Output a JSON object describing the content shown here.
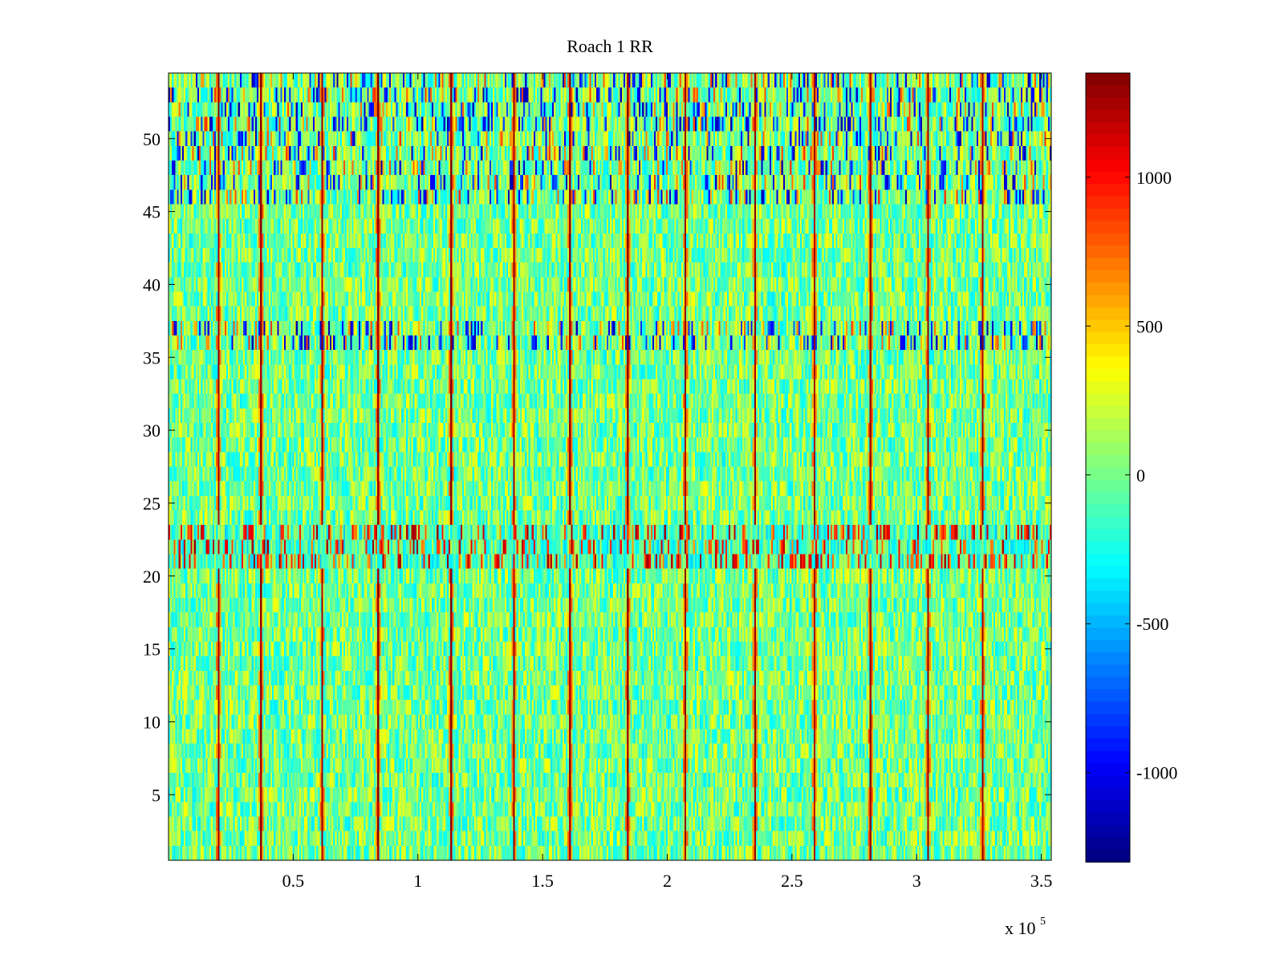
{
  "chart_data": {
    "type": "heatmap",
    "title": "Roach 1 RR",
    "xlabel": "",
    "ylabel": "",
    "x_multiplier_label": {
      "base": "x 10",
      "exponent": "5"
    },
    "xlim": [
      0,
      3.54
    ],
    "ylim": [
      0.5,
      54.5
    ],
    "x_ticks": [
      0.5,
      1,
      1.5,
      2,
      2.5,
      3,
      3.5
    ],
    "x_tick_labels": [
      "0.5",
      "1",
      "1.5",
      "2",
      "2.5",
      "3",
      "3.5"
    ],
    "y_ticks": [
      5,
      10,
      15,
      20,
      25,
      30,
      35,
      40,
      45,
      50
    ],
    "y_tick_labels": [
      "5",
      "10",
      "15",
      "20",
      "25",
      "30",
      "35",
      "40",
      "45",
      "50"
    ],
    "rows": 54,
    "columns": 520,
    "colormap": "jet",
    "clim": [
      -1300,
      1350
    ],
    "colorbar_ticks": [
      -1000,
      -500,
      0,
      500,
      1000
    ],
    "colorbar_tick_labels": [
      "-1000",
      "-500",
      "0",
      "500",
      "1000"
    ],
    "peak_lines_x": [
      0.2,
      0.37,
      0.61,
      0.84,
      1.13,
      1.38,
      1.61,
      1.84,
      2.07,
      2.35,
      2.59,
      2.81,
      3.04,
      3.26
    ],
    "peak_value": 1200,
    "background_range": [
      -400,
      400
    ],
    "high_variance_rows": [
      [
        21,
        23
      ],
      [
        36,
        37
      ],
      [
        46,
        54
      ]
    ],
    "grid": false
  }
}
